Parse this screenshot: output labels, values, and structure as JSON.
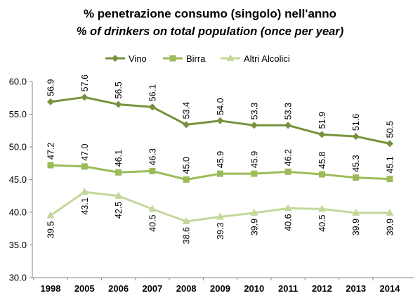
{
  "chart_data": {
    "type": "line",
    "title": "% penetrazione consumo (singolo) nell'anno",
    "subtitle": "% of drinkers on total population (once per year)",
    "xlabel": "",
    "ylabel": "",
    "categories": [
      "1998",
      "2005",
      "2006",
      "2007",
      "2008",
      "2009",
      "2010",
      "2011",
      "2012",
      "2013",
      "2014"
    ],
    "ylim": [
      30.0,
      60.0
    ],
    "yticks": [
      "30.0",
      "35.0",
      "40.0",
      "45.0",
      "50.0",
      "55.0",
      "60.0"
    ],
    "grid": false,
    "legend_position": "top",
    "series": [
      {
        "name": "Vino",
        "color": "#76923c",
        "marker": "diamond",
        "label_position": "above",
        "values": [
          56.9,
          57.6,
          56.5,
          56.1,
          53.4,
          54.0,
          53.3,
          53.3,
          51.9,
          51.6,
          50.5
        ]
      },
      {
        "name": "Birra",
        "color": "#9bbb59",
        "marker": "square",
        "label_position": "above",
        "values": [
          47.2,
          47.0,
          46.1,
          46.3,
          45.0,
          45.9,
          45.9,
          46.2,
          45.8,
          45.3,
          45.1
        ]
      },
      {
        "name": "Altri Alcolici",
        "color": "#c4d79b",
        "marker": "triangle",
        "label_position": "below",
        "values": [
          39.5,
          43.1,
          42.5,
          40.5,
          38.6,
          39.3,
          39.9,
          40.6,
          40.5,
          39.9,
          39.9
        ]
      }
    ]
  }
}
